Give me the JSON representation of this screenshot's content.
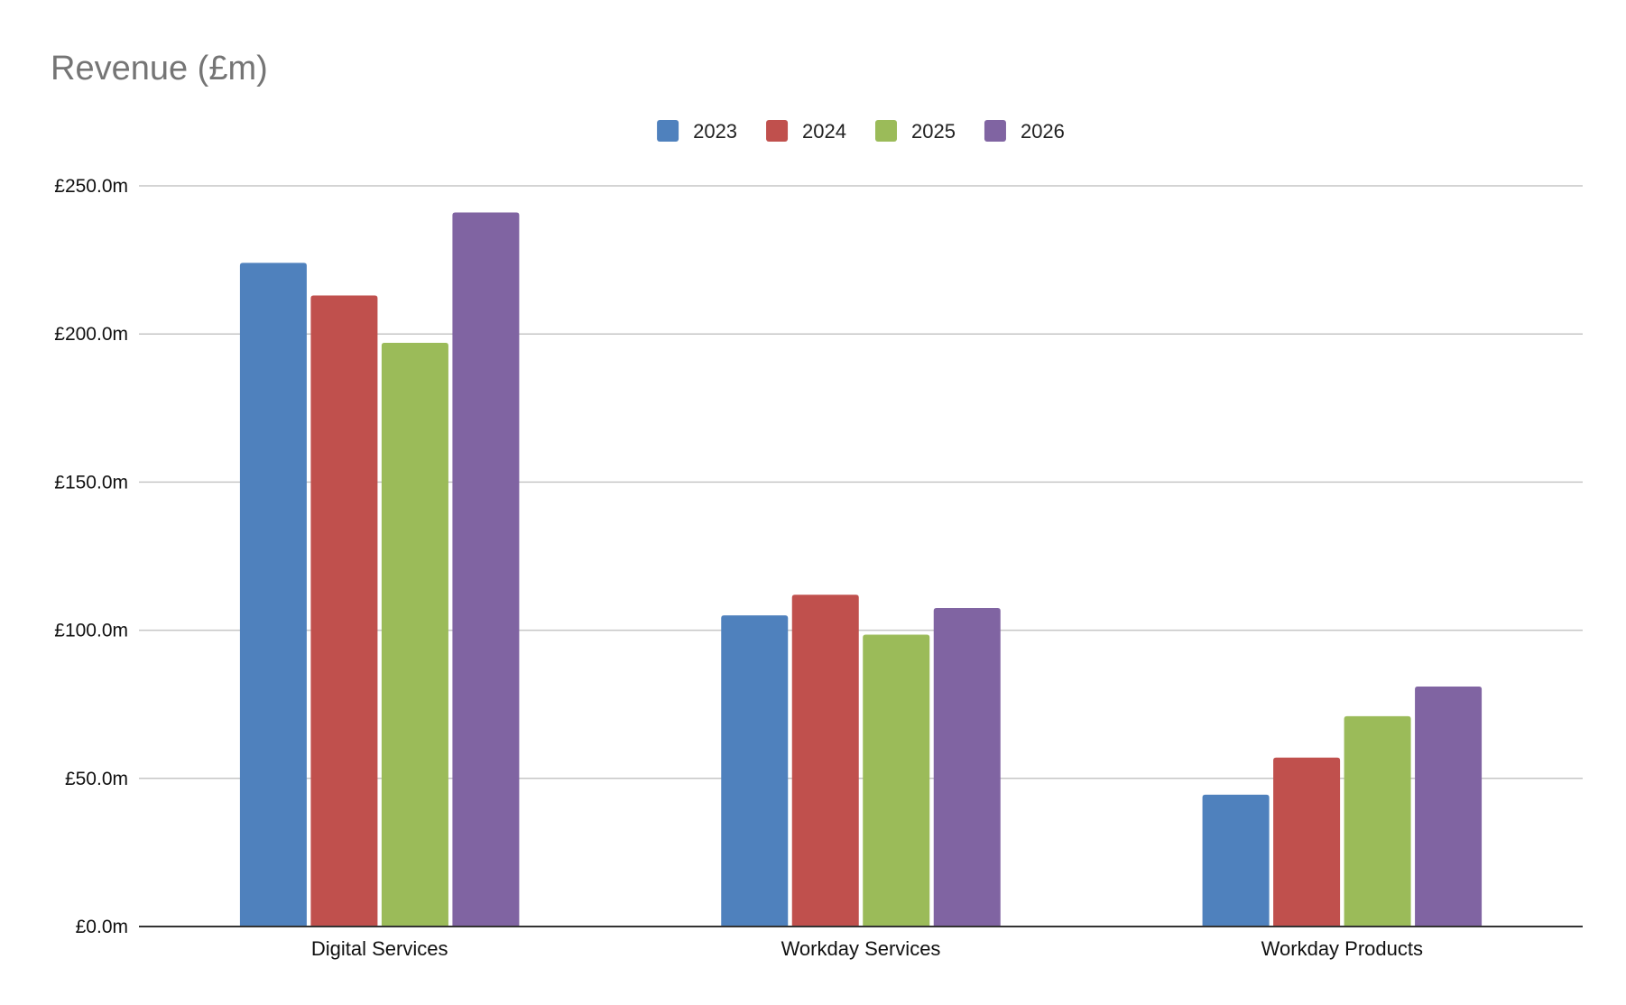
{
  "chart_data": {
    "type": "bar",
    "title": "Revenue (£m)",
    "categories": [
      "Digital Services",
      "Workday Services",
      "Workday Products"
    ],
    "series": [
      {
        "name": "2023",
        "color": "#4f81bd",
        "values": [
          224,
          105,
          44.5
        ]
      },
      {
        "name": "2024",
        "color": "#c0504d",
        "values": [
          213,
          112,
          57
        ]
      },
      {
        "name": "2025",
        "color": "#9bbb59",
        "values": [
          197,
          98.5,
          71
        ]
      },
      {
        "name": "2026",
        "color": "#8064a2",
        "values": [
          241,
          107.5,
          81
        ]
      }
    ],
    "ylim": [
      0,
      250
    ],
    "yticks": [
      0,
      50,
      100,
      150,
      200,
      250
    ],
    "ytick_labels": [
      "£0.0m",
      "£50.0m",
      "£100.0m",
      "£150.0m",
      "£200.0m",
      "£250.0m"
    ],
    "xlabel": "",
    "ylabel": "",
    "grid": true,
    "legend_position": "top-center"
  }
}
